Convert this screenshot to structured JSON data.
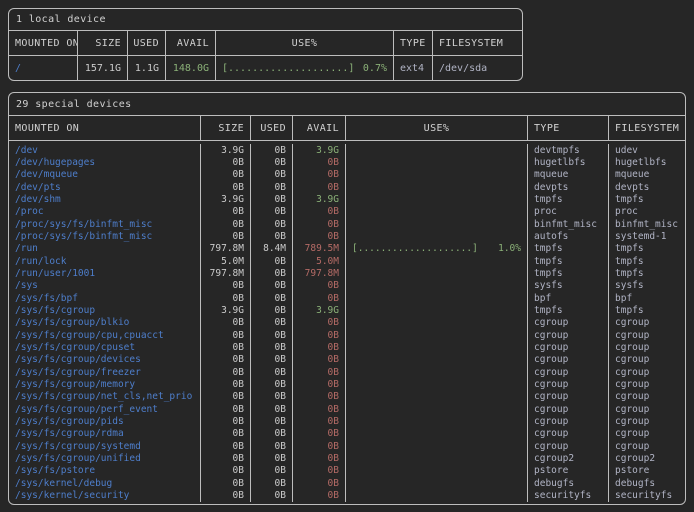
{
  "colors": {
    "background": "#262626",
    "border": "#bdbdbd",
    "header_text": "#d2d2d2",
    "value_text": "#cbcbcb",
    "mount_path": "#4e7ecb",
    "avail_ok": "#8bb178",
    "avail_low": "#b56b66",
    "type_fs_text": "#b1b4c5"
  },
  "tables": [
    {
      "title": "1 local device",
      "headers": [
        "MOUNTED ON",
        "SIZE",
        "USED",
        "AVAIL",
        "USE%",
        "TYPE",
        "FILESYSTEM"
      ],
      "rows": [
        {
          "mount": "/",
          "size": "157.1G",
          "used": "1.1G",
          "avail": "148.0G",
          "avail_color": "ok",
          "bar": "[....................]",
          "pct": "0.7%",
          "type": "ext4",
          "fs": "/dev/sda"
        }
      ]
    },
    {
      "title": "29 special devices",
      "headers": [
        "MOUNTED ON",
        "SIZE",
        "USED",
        "AVAIL",
        "USE%",
        "TYPE",
        "FILESYSTEM"
      ],
      "rows": [
        {
          "mount": "/dev",
          "size": "3.9G",
          "used": "0B",
          "avail": "3.9G",
          "avail_color": "ok",
          "bar": "",
          "pct": "",
          "type": "devtmpfs",
          "fs": "udev"
        },
        {
          "mount": "/dev/hugepages",
          "size": "0B",
          "used": "0B",
          "avail": "0B",
          "avail_color": "low",
          "bar": "",
          "pct": "",
          "type": "hugetlbfs",
          "fs": "hugetlbfs"
        },
        {
          "mount": "/dev/mqueue",
          "size": "0B",
          "used": "0B",
          "avail": "0B",
          "avail_color": "low",
          "bar": "",
          "pct": "",
          "type": "mqueue",
          "fs": "mqueue"
        },
        {
          "mount": "/dev/pts",
          "size": "0B",
          "used": "0B",
          "avail": "0B",
          "avail_color": "low",
          "bar": "",
          "pct": "",
          "type": "devpts",
          "fs": "devpts"
        },
        {
          "mount": "/dev/shm",
          "size": "3.9G",
          "used": "0B",
          "avail": "3.9G",
          "avail_color": "ok",
          "bar": "",
          "pct": "",
          "type": "tmpfs",
          "fs": "tmpfs"
        },
        {
          "mount": "/proc",
          "size": "0B",
          "used": "0B",
          "avail": "0B",
          "avail_color": "low",
          "bar": "",
          "pct": "",
          "type": "proc",
          "fs": "proc"
        },
        {
          "mount": "/proc/sys/fs/binfmt_misc",
          "size": "0B",
          "used": "0B",
          "avail": "0B",
          "avail_color": "low",
          "bar": "",
          "pct": "",
          "type": "binfmt_misc",
          "fs": "binfmt_misc"
        },
        {
          "mount": "/proc/sys/fs/binfmt_misc",
          "size": "0B",
          "used": "0B",
          "avail": "0B",
          "avail_color": "low",
          "bar": "",
          "pct": "",
          "type": "autofs",
          "fs": "systemd-1"
        },
        {
          "mount": "/run",
          "size": "797.8M",
          "used": "8.4M",
          "avail": "789.5M",
          "avail_color": "low",
          "bar": "[....................]",
          "pct": "1.0%",
          "type": "tmpfs",
          "fs": "tmpfs"
        },
        {
          "mount": "/run/lock",
          "size": "5.0M",
          "used": "0B",
          "avail": "5.0M",
          "avail_color": "low",
          "bar": "",
          "pct": "",
          "type": "tmpfs",
          "fs": "tmpfs"
        },
        {
          "mount": "/run/user/1001",
          "size": "797.8M",
          "used": "0B",
          "avail": "797.8M",
          "avail_color": "low",
          "bar": "",
          "pct": "",
          "type": "tmpfs",
          "fs": "tmpfs"
        },
        {
          "mount": "/sys",
          "size": "0B",
          "used": "0B",
          "avail": "0B",
          "avail_color": "low",
          "bar": "",
          "pct": "",
          "type": "sysfs",
          "fs": "sysfs"
        },
        {
          "mount": "/sys/fs/bpf",
          "size": "0B",
          "used": "0B",
          "avail": "0B",
          "avail_color": "low",
          "bar": "",
          "pct": "",
          "type": "bpf",
          "fs": "bpf"
        },
        {
          "mount": "/sys/fs/cgroup",
          "size": "3.9G",
          "used": "0B",
          "avail": "3.9G",
          "avail_color": "ok",
          "bar": "",
          "pct": "",
          "type": "tmpfs",
          "fs": "tmpfs"
        },
        {
          "mount": "/sys/fs/cgroup/blkio",
          "size": "0B",
          "used": "0B",
          "avail": "0B",
          "avail_color": "low",
          "bar": "",
          "pct": "",
          "type": "cgroup",
          "fs": "cgroup"
        },
        {
          "mount": "/sys/fs/cgroup/cpu,cpuacct",
          "size": "0B",
          "used": "0B",
          "avail": "0B",
          "avail_color": "low",
          "bar": "",
          "pct": "",
          "type": "cgroup",
          "fs": "cgroup"
        },
        {
          "mount": "/sys/fs/cgroup/cpuset",
          "size": "0B",
          "used": "0B",
          "avail": "0B",
          "avail_color": "low",
          "bar": "",
          "pct": "",
          "type": "cgroup",
          "fs": "cgroup"
        },
        {
          "mount": "/sys/fs/cgroup/devices",
          "size": "0B",
          "used": "0B",
          "avail": "0B",
          "avail_color": "low",
          "bar": "",
          "pct": "",
          "type": "cgroup",
          "fs": "cgroup"
        },
        {
          "mount": "/sys/fs/cgroup/freezer",
          "size": "0B",
          "used": "0B",
          "avail": "0B",
          "avail_color": "low",
          "bar": "",
          "pct": "",
          "type": "cgroup",
          "fs": "cgroup"
        },
        {
          "mount": "/sys/fs/cgroup/memory",
          "size": "0B",
          "used": "0B",
          "avail": "0B",
          "avail_color": "low",
          "bar": "",
          "pct": "",
          "type": "cgroup",
          "fs": "cgroup"
        },
        {
          "mount": "/sys/fs/cgroup/net_cls,net_prio",
          "size": "0B",
          "used": "0B",
          "avail": "0B",
          "avail_color": "low",
          "bar": "",
          "pct": "",
          "type": "cgroup",
          "fs": "cgroup"
        },
        {
          "mount": "/sys/fs/cgroup/perf_event",
          "size": "0B",
          "used": "0B",
          "avail": "0B",
          "avail_color": "low",
          "bar": "",
          "pct": "",
          "type": "cgroup",
          "fs": "cgroup"
        },
        {
          "mount": "/sys/fs/cgroup/pids",
          "size": "0B",
          "used": "0B",
          "avail": "0B",
          "avail_color": "low",
          "bar": "",
          "pct": "",
          "type": "cgroup",
          "fs": "cgroup"
        },
        {
          "mount": "/sys/fs/cgroup/rdma",
          "size": "0B",
          "used": "0B",
          "avail": "0B",
          "avail_color": "low",
          "bar": "",
          "pct": "",
          "type": "cgroup",
          "fs": "cgroup"
        },
        {
          "mount": "/sys/fs/cgroup/systemd",
          "size": "0B",
          "used": "0B",
          "avail": "0B",
          "avail_color": "low",
          "bar": "",
          "pct": "",
          "type": "cgroup",
          "fs": "cgroup"
        },
        {
          "mount": "/sys/fs/cgroup/unified",
          "size": "0B",
          "used": "0B",
          "avail": "0B",
          "avail_color": "low",
          "bar": "",
          "pct": "",
          "type": "cgroup2",
          "fs": "cgroup2"
        },
        {
          "mount": "/sys/fs/pstore",
          "size": "0B",
          "used": "0B",
          "avail": "0B",
          "avail_color": "low",
          "bar": "",
          "pct": "",
          "type": "pstore",
          "fs": "pstore"
        },
        {
          "mount": "/sys/kernel/debug",
          "size": "0B",
          "used": "0B",
          "avail": "0B",
          "avail_color": "low",
          "bar": "",
          "pct": "",
          "type": "debugfs",
          "fs": "debugfs"
        },
        {
          "mount": "/sys/kernel/security",
          "size": "0B",
          "used": "0B",
          "avail": "0B",
          "avail_color": "low",
          "bar": "",
          "pct": "",
          "type": "securityfs",
          "fs": "securityfs"
        }
      ]
    }
  ]
}
